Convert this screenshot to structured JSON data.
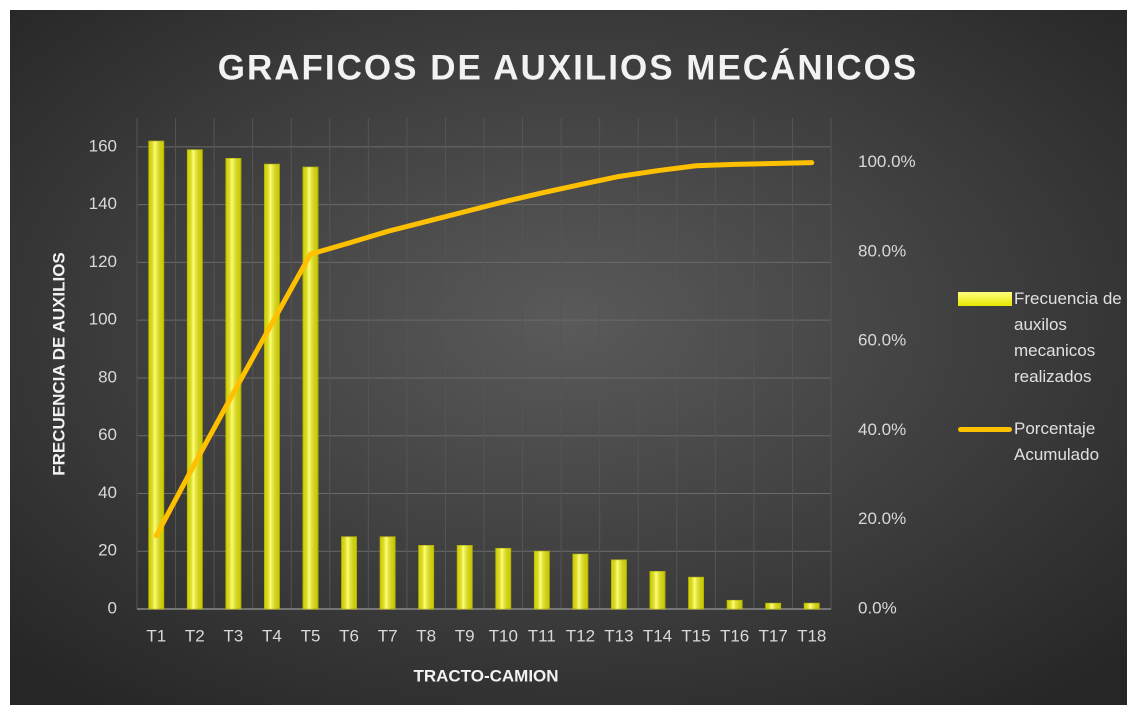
{
  "chart_data": {
    "type": "bar",
    "title": "GRAFICOS DE AUXILIOS MECÁNICOS",
    "x_label": "TRACTO-CAMION",
    "y_label": "FRECUENCIA DE AUXILIOS",
    "categories": [
      "T1",
      "T2",
      "T3",
      "T4",
      "T5",
      "T6",
      "T7",
      "T8",
      "T9",
      "T10",
      "T11",
      "T12",
      "T13",
      "T14",
      "T15",
      "T16",
      "T17",
      "T18"
    ],
    "series": [
      {
        "name": "Frecuencia de auxilos mecanicos realizados",
        "type": "bar",
        "color": "#ffff00",
        "values": [
          162,
          159,
          156,
          154,
          153,
          25,
          25,
          22,
          22,
          21,
          20,
          19,
          17,
          13,
          11,
          3,
          2,
          2
        ]
      },
      {
        "name": "Porcentaje Acumulado",
        "type": "line",
        "color": "#ffc000",
        "axis": "y2",
        "values": [
          16.4,
          32.6,
          48.4,
          64.0,
          79.5,
          82.0,
          84.6,
          86.8,
          89.0,
          91.2,
          93.2,
          95.1,
          96.9,
          98.2,
          99.3,
          99.6,
          99.8,
          100
        ]
      }
    ],
    "ylim": [
      0,
      170
    ],
    "yticks": [
      0,
      20,
      40,
      60,
      80,
      100,
      120,
      140,
      160
    ],
    "y2lim": [
      0,
      110
    ],
    "y2ticks": [
      {
        "value": 0,
        "label": "0.0%"
      },
      {
        "value": 20,
        "label": "20.0%"
      },
      {
        "value": 40,
        "label": "40.0%"
      },
      {
        "value": 60,
        "label": "60.0%"
      },
      {
        "value": 80,
        "label": "80.0%"
      },
      {
        "value": 100,
        "label": "100.0%"
      }
    ],
    "grid": true,
    "legend": "right"
  }
}
